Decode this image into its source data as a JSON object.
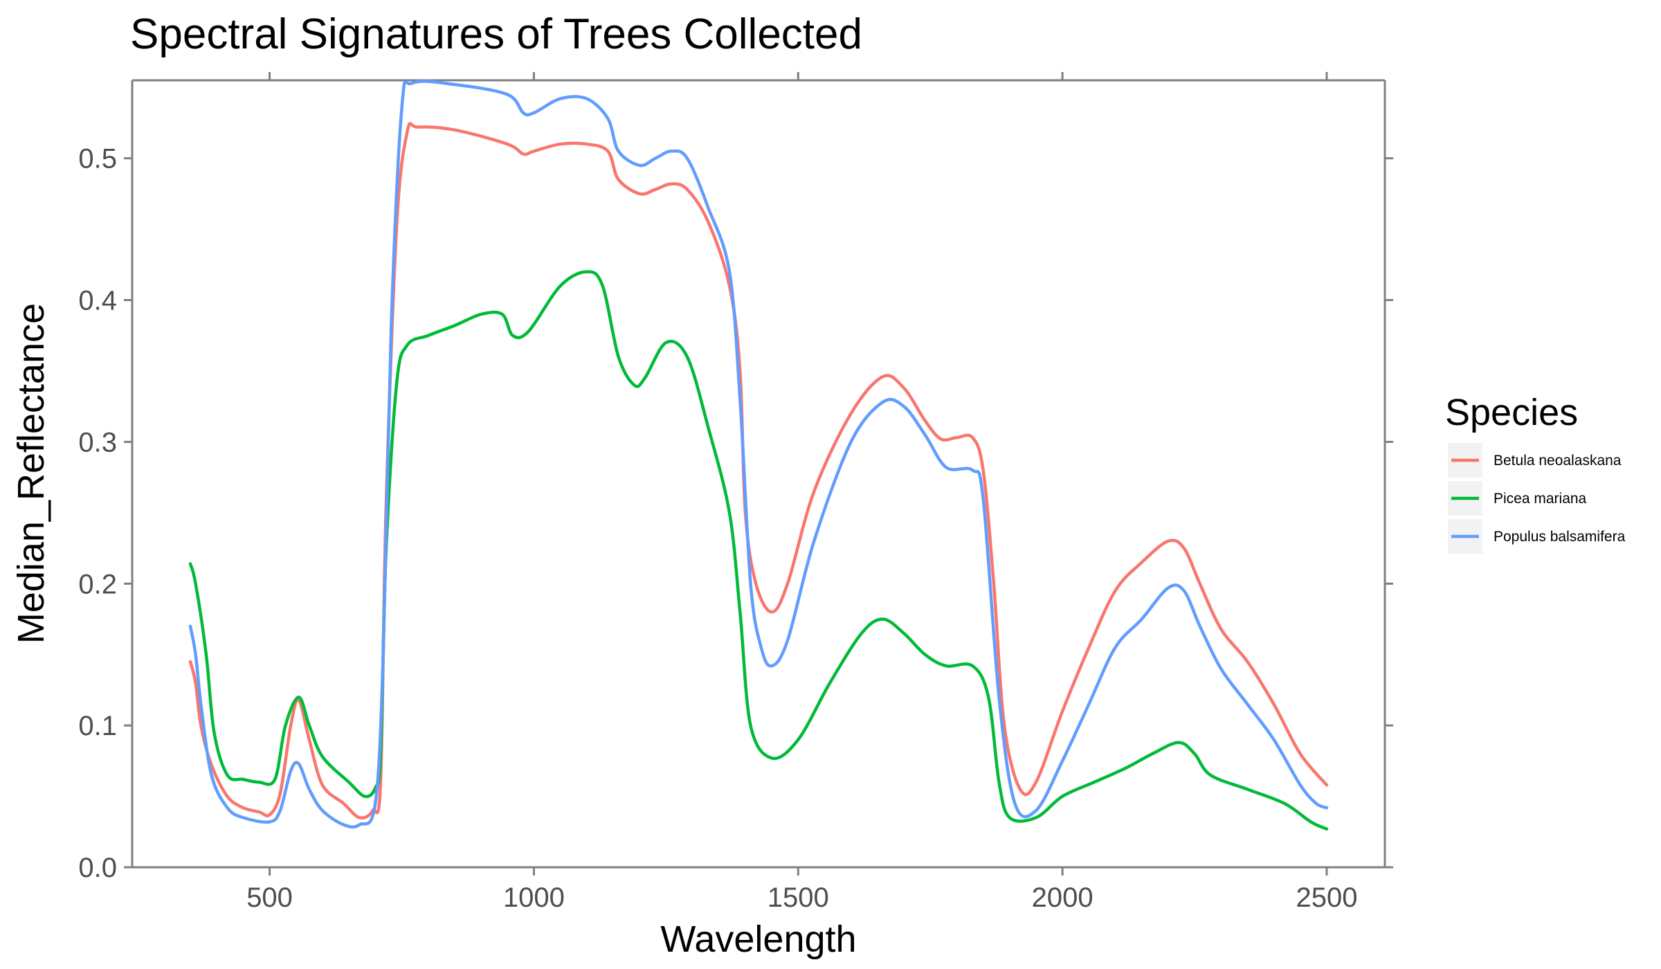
{
  "chart_data": {
    "type": "line",
    "title": "Spectral Signatures of Trees Collected",
    "xlabel": "Wavelength",
    "ylabel": "Median_Reflectance",
    "xlim": [
      240,
      2610
    ],
    "ylim": [
      0,
      0.555
    ],
    "x_ticks": [
      500,
      1000,
      1500,
      2000,
      2500
    ],
    "y_ticks": [
      0.0,
      0.1,
      0.2,
      0.3,
      0.4,
      0.5
    ],
    "x_tick_labels": [
      "500",
      "1000",
      "1500",
      "2000",
      "2500"
    ],
    "y_tick_labels": [
      "0.0",
      "0.1",
      "0.2",
      "0.3",
      "0.4",
      "0.5"
    ],
    "grid": false,
    "legend": {
      "title": "Species",
      "position": "right"
    },
    "series": [
      {
        "name": "Betula neoalaskana",
        "color": "#F8766D",
        "points": [
          [
            350,
            0.145
          ],
          [
            360,
            0.13
          ],
          [
            370,
            0.1
          ],
          [
            390,
            0.072
          ],
          [
            420,
            0.05
          ],
          [
            450,
            0.042
          ],
          [
            480,
            0.039
          ],
          [
            500,
            0.037
          ],
          [
            520,
            0.052
          ],
          [
            540,
            0.1
          ],
          [
            555,
            0.118
          ],
          [
            575,
            0.09
          ],
          [
            600,
            0.058
          ],
          [
            640,
            0.045
          ],
          [
            670,
            0.035
          ],
          [
            695,
            0.04
          ],
          [
            710,
            0.06
          ],
          [
            720,
            0.25
          ],
          [
            740,
            0.45
          ],
          [
            760,
            0.518
          ],
          [
            780,
            0.522
          ],
          [
            850,
            0.52
          ],
          [
            950,
            0.51
          ],
          [
            980,
            0.503
          ],
          [
            1000,
            0.505
          ],
          [
            1050,
            0.51
          ],
          [
            1100,
            0.51
          ],
          [
            1140,
            0.505
          ],
          [
            1160,
            0.485
          ],
          [
            1200,
            0.475
          ],
          [
            1230,
            0.478
          ],
          [
            1260,
            0.482
          ],
          [
            1290,
            0.478
          ],
          [
            1330,
            0.455
          ],
          [
            1370,
            0.41
          ],
          [
            1390,
            0.35
          ],
          [
            1400,
            0.25
          ],
          [
            1420,
            0.2
          ],
          [
            1450,
            0.18
          ],
          [
            1480,
            0.2
          ],
          [
            1530,
            0.265
          ],
          [
            1600,
            0.32
          ],
          [
            1660,
            0.346
          ],
          [
            1700,
            0.338
          ],
          [
            1740,
            0.315
          ],
          [
            1770,
            0.302
          ],
          [
            1800,
            0.303
          ],
          [
            1830,
            0.303
          ],
          [
            1850,
            0.28
          ],
          [
            1870,
            0.2
          ],
          [
            1890,
            0.1
          ],
          [
            1920,
            0.055
          ],
          [
            1950,
            0.06
          ],
          [
            2000,
            0.11
          ],
          [
            2050,
            0.155
          ],
          [
            2100,
            0.195
          ],
          [
            2150,
            0.215
          ],
          [
            2200,
            0.23
          ],
          [
            2230,
            0.225
          ],
          [
            2260,
            0.2
          ],
          [
            2300,
            0.168
          ],
          [
            2350,
            0.145
          ],
          [
            2400,
            0.115
          ],
          [
            2450,
            0.08
          ],
          [
            2500,
            0.058
          ]
        ]
      },
      {
        "name": "Picea mariana",
        "color": "#00BA38",
        "points": [
          [
            350,
            0.214
          ],
          [
            360,
            0.2
          ],
          [
            380,
            0.15
          ],
          [
            395,
            0.095
          ],
          [
            420,
            0.065
          ],
          [
            450,
            0.062
          ],
          [
            480,
            0.06
          ],
          [
            510,
            0.062
          ],
          [
            530,
            0.1
          ],
          [
            555,
            0.12
          ],
          [
            575,
            0.1
          ],
          [
            600,
            0.078
          ],
          [
            650,
            0.06
          ],
          [
            680,
            0.05
          ],
          [
            700,
            0.056
          ],
          [
            710,
            0.08
          ],
          [
            720,
            0.22
          ],
          [
            740,
            0.34
          ],
          [
            760,
            0.368
          ],
          [
            800,
            0.375
          ],
          [
            850,
            0.382
          ],
          [
            900,
            0.39
          ],
          [
            940,
            0.39
          ],
          [
            960,
            0.375
          ],
          [
            990,
            0.378
          ],
          [
            1050,
            0.41
          ],
          [
            1100,
            0.42
          ],
          [
            1130,
            0.41
          ],
          [
            1160,
            0.36
          ],
          [
            1190,
            0.34
          ],
          [
            1210,
            0.345
          ],
          [
            1250,
            0.37
          ],
          [
            1290,
            0.36
          ],
          [
            1330,
            0.31
          ],
          [
            1370,
            0.25
          ],
          [
            1390,
            0.18
          ],
          [
            1410,
            0.1
          ],
          [
            1450,
            0.077
          ],
          [
            1500,
            0.09
          ],
          [
            1560,
            0.13
          ],
          [
            1620,
            0.165
          ],
          [
            1660,
            0.175
          ],
          [
            1700,
            0.165
          ],
          [
            1740,
            0.15
          ],
          [
            1780,
            0.142
          ],
          [
            1830,
            0.142
          ],
          [
            1860,
            0.12
          ],
          [
            1880,
            0.06
          ],
          [
            1900,
            0.035
          ],
          [
            1950,
            0.035
          ],
          [
            2000,
            0.05
          ],
          [
            2060,
            0.06
          ],
          [
            2120,
            0.07
          ],
          [
            2170,
            0.08
          ],
          [
            2220,
            0.088
          ],
          [
            2250,
            0.08
          ],
          [
            2280,
            0.065
          ],
          [
            2350,
            0.055
          ],
          [
            2420,
            0.045
          ],
          [
            2470,
            0.032
          ],
          [
            2500,
            0.027
          ]
        ]
      },
      {
        "name": "Populus balsamifera",
        "color": "#619CFF",
        "points": [
          [
            350,
            0.17
          ],
          [
            360,
            0.15
          ],
          [
            370,
            0.115
          ],
          [
            390,
            0.065
          ],
          [
            420,
            0.042
          ],
          [
            450,
            0.035
          ],
          [
            500,
            0.032
          ],
          [
            520,
            0.04
          ],
          [
            540,
            0.068
          ],
          [
            555,
            0.073
          ],
          [
            575,
            0.055
          ],
          [
            600,
            0.04
          ],
          [
            640,
            0.03
          ],
          [
            670,
            0.03
          ],
          [
            700,
            0.045
          ],
          [
            715,
            0.15
          ],
          [
            730,
            0.38
          ],
          [
            750,
            0.535
          ],
          [
            770,
            0.553
          ],
          [
            850,
            0.552
          ],
          [
            950,
            0.545
          ],
          [
            980,
            0.532
          ],
          [
            1000,
            0.532
          ],
          [
            1050,
            0.542
          ],
          [
            1100,
            0.542
          ],
          [
            1140,
            0.528
          ],
          [
            1160,
            0.505
          ],
          [
            1200,
            0.495
          ],
          [
            1230,
            0.5
          ],
          [
            1260,
            0.505
          ],
          [
            1290,
            0.5
          ],
          [
            1330,
            0.465
          ],
          [
            1370,
            0.42
          ],
          [
            1390,
            0.33
          ],
          [
            1410,
            0.2
          ],
          [
            1430,
            0.155
          ],
          [
            1450,
            0.142
          ],
          [
            1480,
            0.16
          ],
          [
            1530,
            0.23
          ],
          [
            1600,
            0.3
          ],
          [
            1660,
            0.328
          ],
          [
            1700,
            0.325
          ],
          [
            1740,
            0.305
          ],
          [
            1780,
            0.282
          ],
          [
            1830,
            0.28
          ],
          [
            1850,
            0.26
          ],
          [
            1880,
            0.12
          ],
          [
            1910,
            0.045
          ],
          [
            1950,
            0.04
          ],
          [
            2000,
            0.075
          ],
          [
            2050,
            0.115
          ],
          [
            2100,
            0.155
          ],
          [
            2150,
            0.175
          ],
          [
            2200,
            0.197
          ],
          [
            2230,
            0.195
          ],
          [
            2260,
            0.17
          ],
          [
            2300,
            0.14
          ],
          [
            2350,
            0.115
          ],
          [
            2400,
            0.09
          ],
          [
            2450,
            0.058
          ],
          [
            2480,
            0.045
          ],
          [
            2500,
            0.042
          ]
        ]
      }
    ]
  }
}
